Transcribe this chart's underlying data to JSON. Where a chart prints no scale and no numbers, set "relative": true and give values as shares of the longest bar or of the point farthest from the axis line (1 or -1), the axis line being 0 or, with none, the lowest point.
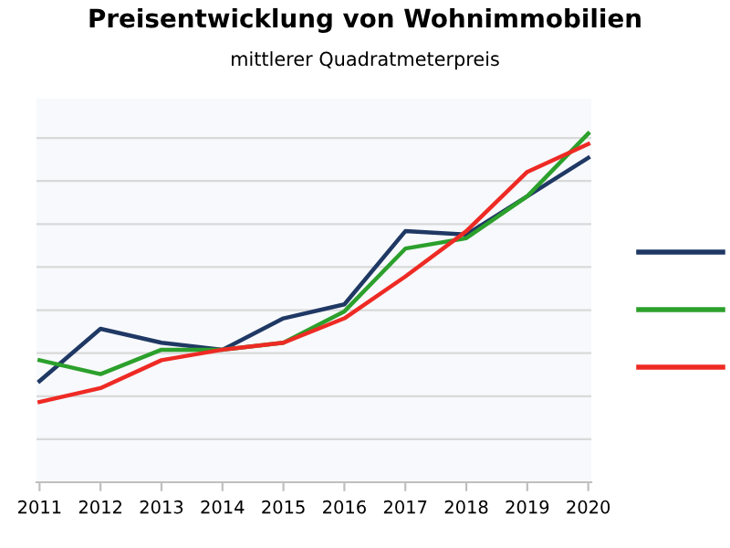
{
  "chart_data": {
    "type": "line",
    "title": "Preisentwicklung von Wohnimmobilien",
    "subtitle": "mittlerer Quadratmeterpreis",
    "relative": true,
    "grid": "y",
    "categories": [
      "2011",
      "2012",
      "2013",
      "2014",
      "2015",
      "2016",
      "2017",
      "2018",
      "2019",
      "2020"
    ],
    "series": [
      {
        "color": "#1f3864",
        "values": [
          0.29,
          0.44,
          0.4,
          0.38,
          0.47,
          0.51,
          0.72,
          0.71,
          0.82,
          0.93
        ]
      },
      {
        "color": "#2ca02c",
        "values": [
          0.35,
          0.31,
          0.38,
          0.38,
          0.4,
          0.49,
          0.67,
          0.7,
          0.82,
          1
        ]
      },
      {
        "color": "#ee2a24",
        "values": [
          0.23,
          0.27,
          0.35,
          0.38,
          0.4,
          0.47,
          0.59,
          0.72,
          0.89,
          0.97
        ]
      }
    ]
  }
}
